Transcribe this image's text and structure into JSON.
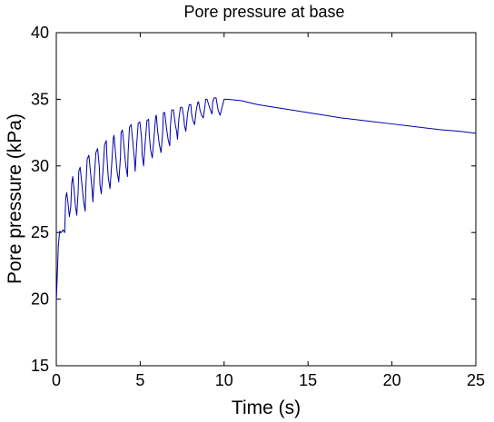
{
  "chart_data": {
    "type": "line",
    "title": "Pore pressure at base",
    "xlabel": "Time (s)",
    "ylabel": "Pore pressure (kPa)",
    "xlim": [
      0,
      25
    ],
    "ylim": [
      15,
      40
    ],
    "xticks": [
      0,
      5,
      10,
      15,
      20,
      25
    ],
    "yticks": [
      15,
      20,
      25,
      30,
      35,
      40
    ],
    "grid": false,
    "series": [
      {
        "name": "Pore pressure at base",
        "color": "#0000aa",
        "x": [
          0.0,
          0.05,
          0.12,
          0.2,
          0.3,
          0.4,
          0.5,
          0.56,
          0.62,
          0.7,
          0.78,
          0.86,
          0.92,
          0.98,
          1.06,
          1.14,
          1.22,
          1.3,
          1.34,
          1.42,
          1.52,
          1.62,
          1.72,
          1.76,
          1.84,
          1.94,
          2.04,
          2.14,
          2.18,
          2.26,
          2.36,
          2.46,
          2.56,
          2.6,
          2.68,
          2.78,
          2.88,
          2.98,
          3.02,
          3.1,
          3.2,
          3.3,
          3.4,
          3.44,
          3.52,
          3.62,
          3.72,
          3.82,
          3.86,
          3.94,
          4.04,
          4.14,
          4.24,
          4.28,
          4.36,
          4.46,
          4.56,
          4.66,
          4.7,
          4.78,
          4.88,
          4.98,
          5.08,
          5.12,
          5.2,
          5.3,
          5.4,
          5.5,
          5.54,
          5.62,
          5.72,
          5.82,
          5.92,
          5.96,
          6.04,
          6.14,
          6.24,
          6.34,
          6.38,
          6.46,
          6.56,
          6.66,
          6.76,
          6.8,
          6.88,
          6.98,
          7.08,
          7.18,
          7.22,
          7.3,
          7.4,
          7.5,
          7.6,
          7.64,
          7.72,
          7.82,
          7.92,
          8.02,
          8.06,
          8.14,
          8.24,
          8.34,
          8.44,
          8.48,
          8.56,
          8.66,
          8.76,
          8.86,
          8.9,
          8.98,
          9.08,
          9.18,
          9.28,
          9.32,
          9.4,
          9.52,
          9.64,
          9.76,
          10.0,
          10.2,
          11.0,
          12.0,
          13.0,
          14.0,
          15.0,
          16.0,
          17.0,
          18.0,
          19.0,
          20.0,
          21.0,
          22.0,
          23.0,
          24.0,
          25.0
        ],
        "y": [
          19.8,
          21.5,
          24.0,
          25.1,
          25.0,
          25.2,
          25.0,
          27.6,
          28.0,
          27.2,
          26.2,
          26.9,
          28.7,
          29.2,
          28.2,
          27.0,
          26.3,
          28.0,
          29.6,
          29.9,
          28.7,
          27.4,
          26.6,
          28.4,
          30.5,
          30.8,
          29.5,
          28.1,
          27.3,
          29.1,
          31.0,
          31.3,
          30.0,
          28.6,
          27.9,
          29.6,
          31.6,
          31.9,
          30.6,
          29.1,
          28.3,
          30.1,
          32.1,
          32.3,
          31.1,
          29.6,
          28.8,
          30.6,
          32.5,
          32.7,
          31.4,
          30.0,
          29.2,
          31.0,
          32.9,
          33.1,
          31.8,
          30.4,
          29.6,
          31.4,
          33.2,
          33.3,
          32.1,
          30.8,
          30.0,
          31.8,
          33.4,
          33.5,
          32.3,
          31.2,
          30.6,
          32.1,
          33.7,
          33.8,
          32.6,
          31.6,
          31.0,
          32.5,
          34.0,
          34.0,
          32.9,
          32.0,
          31.5,
          33.0,
          34.2,
          34.2,
          33.2,
          32.5,
          32.0,
          33.5,
          34.4,
          34.4,
          33.6,
          33.0,
          32.6,
          33.9,
          34.6,
          34.6,
          33.9,
          33.4,
          33.1,
          34.2,
          34.8,
          34.8,
          34.2,
          33.8,
          33.6,
          34.5,
          35.0,
          35.0,
          34.6,
          34.2,
          33.9,
          34.8,
          35.1,
          35.1,
          34.2,
          33.8,
          35.0,
          35.0,
          34.9,
          34.6,
          34.4,
          34.2,
          34.0,
          33.8,
          33.6,
          33.45,
          33.3,
          33.15,
          33.0,
          32.85,
          32.7,
          32.6,
          32.45
        ]
      }
    ]
  }
}
